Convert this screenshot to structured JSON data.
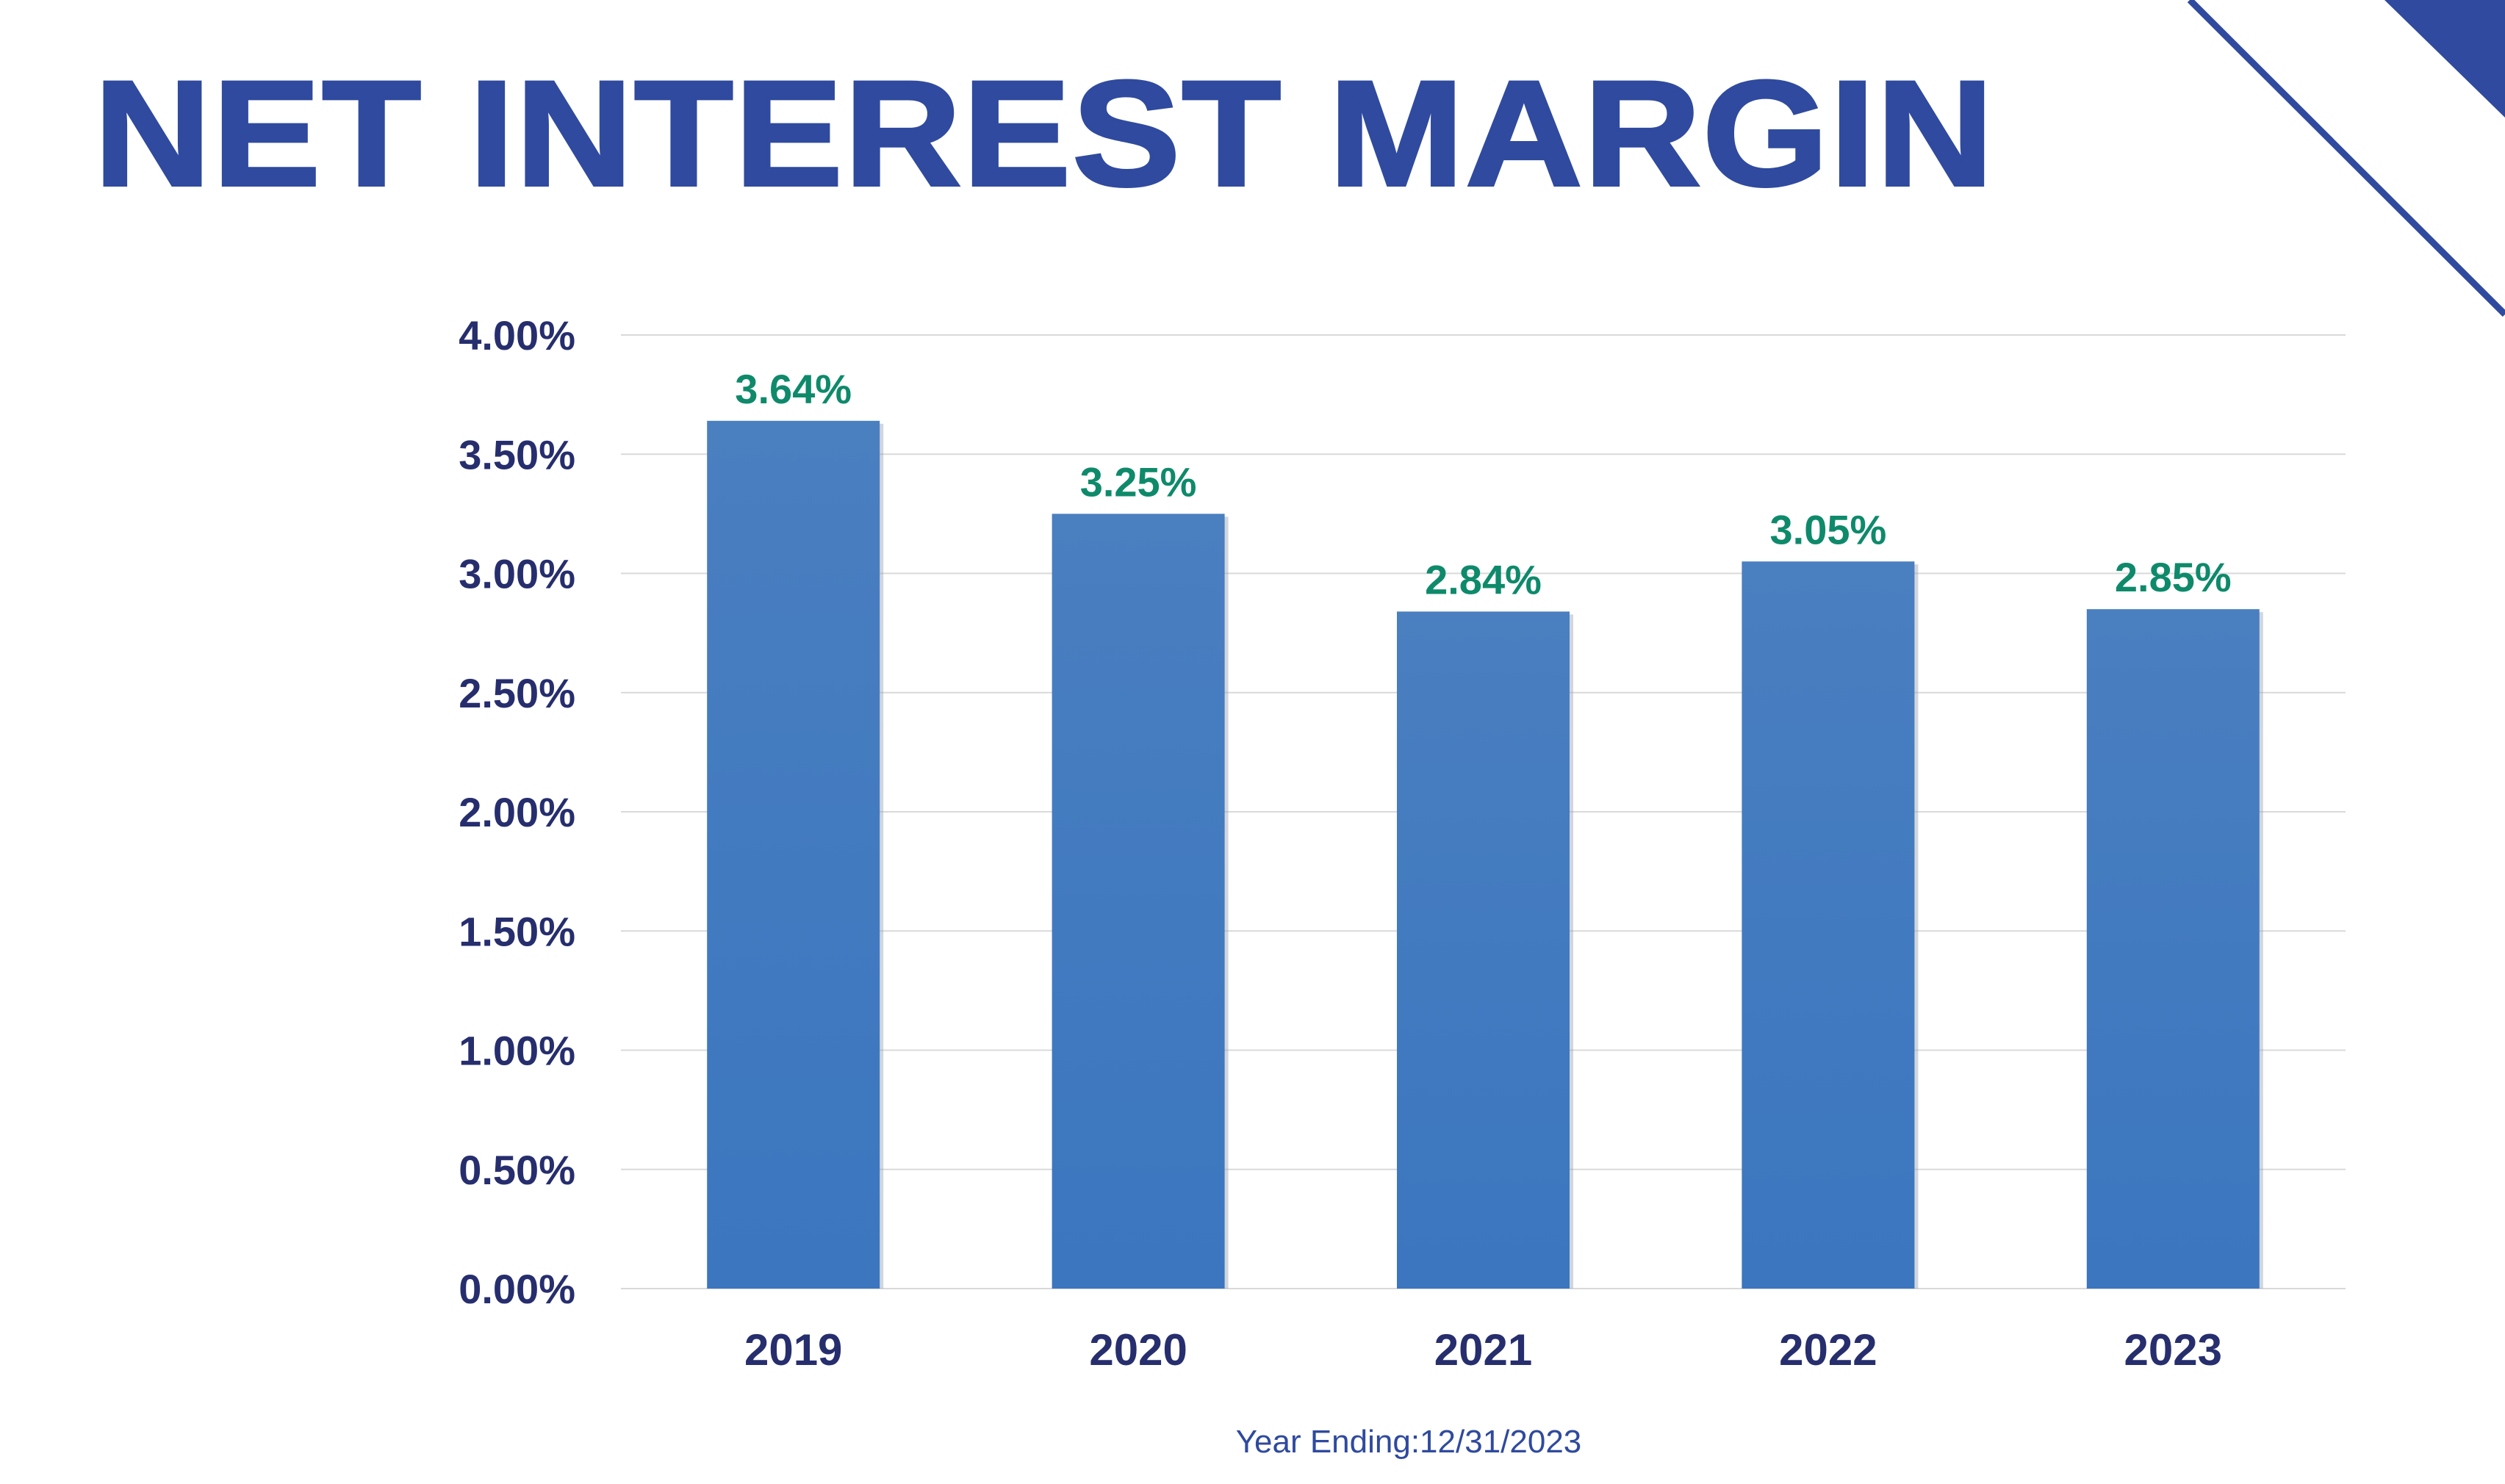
{
  "colors": {
    "title": "#2f4a9e",
    "bar": "#3b76bf",
    "bar_top": "#4a7fc0",
    "data_label": "#0e8a6b",
    "axis_text": "#262e6e",
    "grid": "#d9d9d9",
    "corner_accent": "#2f4a9e"
  },
  "page": {
    "title": "NET INTEREST MARGIN",
    "footnote": "Year Ending:12/31/2023"
  },
  "chart_data": {
    "type": "bar",
    "title": "",
    "xlabel": "",
    "ylabel": "",
    "categories": [
      "2019",
      "2020",
      "2021",
      "2022",
      "2023"
    ],
    "values": [
      3.64,
      3.25,
      2.84,
      3.05,
      2.85
    ],
    "value_labels": [
      "3.64%",
      "3.25%",
      "2.84%",
      "3.05%",
      "2.85%"
    ],
    "ylim": [
      0,
      4
    ],
    "yticks": [
      0,
      0.5,
      1,
      1.5,
      2,
      2.5,
      3,
      3.5,
      4
    ],
    "ytick_labels": [
      "0.00%",
      "0.50%",
      "1.00%",
      "1.50%",
      "2.00%",
      "2.50%",
      "3.00%",
      "3.50%",
      "4.00%"
    ],
    "grid": true,
    "legend": "none"
  }
}
